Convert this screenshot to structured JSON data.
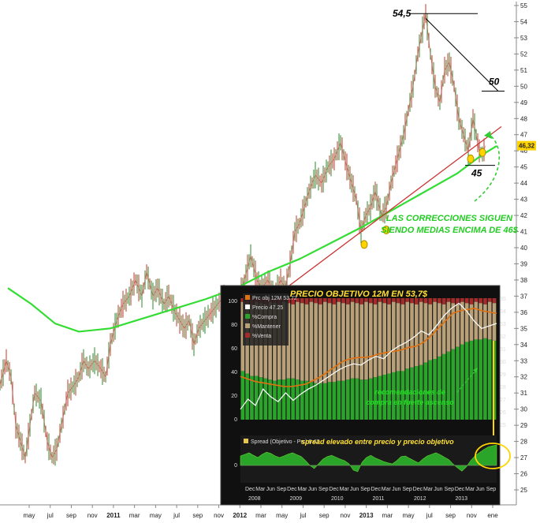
{
  "chart_data": {
    "type": "line",
    "main": {
      "y_ticks": [
        "55",
        "54",
        "53",
        "52",
        "51",
        "50",
        "49",
        "48",
        "47",
        "46",
        "45",
        "44",
        "43",
        "42",
        "41",
        "40",
        "39",
        "38",
        "37",
        "36",
        "35",
        "34",
        "33",
        "32",
        "31",
        "30",
        "29",
        "28",
        "27",
        "26",
        "25"
      ],
      "x_ticks": [
        "may",
        "jul",
        "sep",
        "nov",
        "2011",
        "mar",
        "may",
        "jul",
        "sep",
        "nov",
        "2012",
        "mar",
        "may",
        "jul",
        "sep",
        "nov",
        "2013",
        "mar",
        "may",
        "jul",
        "sep",
        "nov",
        "ene"
      ],
      "last_price_label": "46,32",
      "series": [
        {
          "name": "price",
          "color": "#c0392b"
        },
        {
          "name": "moving-average",
          "color": "#33dd33"
        },
        {
          "name": "trendline",
          "color": "#cc3333"
        }
      ],
      "price_points": [
        [
          0,
          31.5
        ],
        [
          8,
          33
        ],
        [
          14,
          32
        ],
        [
          20,
          29
        ],
        [
          26,
          28
        ],
        [
          32,
          27
        ],
        [
          38,
          29
        ],
        [
          44,
          31
        ],
        [
          52,
          30.5
        ],
        [
          60,
          28
        ],
        [
          66,
          27
        ],
        [
          72,
          27.5
        ],
        [
          78,
          29
        ],
        [
          86,
          31
        ],
        [
          94,
          31.5
        ],
        [
          100,
          32
        ],
        [
          106,
          33
        ],
        [
          112,
          32.5
        ],
        [
          120,
          33
        ],
        [
          128,
          32.5
        ],
        [
          134,
          32
        ],
        [
          140,
          34
        ],
        [
          148,
          35.5
        ],
        [
          156,
          36.5
        ],
        [
          164,
          37
        ],
        [
          172,
          38
        ],
        [
          180,
          37
        ],
        [
          186,
          38.5
        ],
        [
          194,
          37
        ],
        [
          200,
          37.5
        ],
        [
          208,
          36.5
        ],
        [
          214,
          37
        ],
        [
          222,
          36
        ],
        [
          228,
          35.5
        ],
        [
          234,
          35
        ],
        [
          240,
          35.5
        ],
        [
          246,
          34
        ],
        [
          252,
          35
        ],
        [
          260,
          35.5
        ],
        [
          268,
          36
        ],
        [
          276,
          36.5
        ],
        [
          284,
          37
        ],
        [
          292,
          36
        ],
        [
          298,
          35.5
        ],
        [
          304,
          37
        ],
        [
          310,
          38
        ],
        [
          318,
          39.5
        ],
        [
          326,
          38
        ],
        [
          332,
          37.5
        ],
        [
          340,
          38
        ],
        [
          348,
          37
        ],
        [
          356,
          38
        ],
        [
          362,
          37.5
        ],
        [
          368,
          39
        ],
        [
          374,
          41
        ],
        [
          380,
          41.5
        ],
        [
          386,
          42.5
        ],
        [
          392,
          43.5
        ],
        [
          400,
          44.5
        ],
        [
          408,
          44
        ],
        [
          416,
          45
        ],
        [
          424,
          45.5
        ],
        [
          432,
          46.5
        ],
        [
          440,
          45
        ],
        [
          446,
          44
        ],
        [
          452,
          43
        ],
        [
          458,
          41
        ],
        [
          464,
          42
        ],
        [
          470,
          42.5
        ],
        [
          476,
          43.5
        ],
        [
          484,
          42
        ],
        [
          490,
          42.5
        ],
        [
          496,
          44
        ],
        [
          504,
          45.5
        ],
        [
          512,
          47
        ],
        [
          518,
          48.5
        ],
        [
          524,
          50
        ],
        [
          530,
          52
        ],
        [
          536,
          53.5
        ],
        [
          540,
          54.5
        ],
        [
          546,
          52
        ],
        [
          552,
          50
        ],
        [
          558,
          49
        ],
        [
          564,
          51
        ],
        [
          570,
          51.5
        ],
        [
          576,
          50
        ],
        [
          582,
          48
        ],
        [
          588,
          47
        ],
        [
          594,
          46
        ],
        [
          600,
          48
        ],
        [
          604,
          47
        ],
        [
          608,
          46
        ],
        [
          612,
          45.8
        ],
        [
          616,
          46.32
        ]
      ],
      "ma_points": [
        [
          10,
          37.5
        ],
        [
          40,
          36.5
        ],
        [
          70,
          35.3
        ],
        [
          100,
          34.8
        ],
        [
          140,
          35
        ],
        [
          180,
          35.6
        ],
        [
          220,
          36.2
        ],
        [
          260,
          36.8
        ],
        [
          300,
          37.5
        ],
        [
          340,
          38.5
        ],
        [
          380,
          39.3
        ],
        [
          420,
          40.3
        ],
        [
          460,
          41.3
        ],
        [
          500,
          42.4
        ],
        [
          540,
          43.5
        ],
        [
          580,
          44.6
        ],
        [
          610,
          45.7
        ],
        [
          630,
          46.3
        ]
      ],
      "trendline_points": [
        [
          300,
          35.2
        ],
        [
          636,
          47.5
        ]
      ],
      "support_points": [
        [
          300,
          35.3
        ],
        [
          362,
          36.9
        ],
        [
          462,
          40.2
        ],
        [
          490,
          41.1
        ],
        [
          597,
          45.5
        ],
        [
          612,
          45.9
        ]
      ],
      "levels": [
        {
          "label": "54,5",
          "value": 54.5,
          "x_from": 520,
          "x_to": 606
        },
        {
          "label": "45",
          "value": 45.1,
          "x_from": 590,
          "x_to": 628
        }
      ],
      "resistance": {
        "label": "50",
        "from": [
          540,
          54.2
        ],
        "to": [
          632,
          49.7
        ]
      },
      "annotation": "LAS CORRECCIONES SIGUEN\nSIENDO MEDIAS ENCIMA DE 46$"
    },
    "inset": {
      "title": "PRECIO OBJETIVO 12M EN 53,7$",
      "legend": [
        {
          "label": "Prc obj 12M 53.72",
          "color": "#e07010"
        },
        {
          "label": "Precio 47.25",
          "color": "#ffffff"
        },
        {
          "label": "%Compra",
          "color": "#2aa52a"
        },
        {
          "label": "%Mantener",
          "color": "#b8a078"
        },
        {
          "label": "%Venta",
          "color": "#a52a2a"
        }
      ],
      "left_ticks": [
        "100",
        "80",
        "60",
        "40",
        "20",
        "0"
      ],
      "right_ticks": [
        "35",
        "34",
        "33",
        "32",
        "31",
        "30",
        "29",
        "28",
        "27",
        "26",
        "25"
      ],
      "buy_pct": [
        40,
        38,
        36,
        36,
        35,
        34,
        33,
        32,
        33,
        33,
        34,
        34,
        33,
        32,
        32,
        31,
        30,
        30,
        30,
        31,
        31,
        32,
        32,
        33,
        34,
        34,
        33,
        33,
        34,
        35,
        36,
        37,
        38,
        39,
        40,
        40,
        42,
        43,
        44,
        45,
        47,
        49,
        50,
        52,
        54,
        56,
        58,
        60,
        62,
        64,
        65,
        66,
        66,
        67,
        66,
        65
      ],
      "target_values": [
        28.8,
        28.6,
        28.4,
        28.3,
        28.2,
        28.1,
        28,
        28,
        28.1,
        28.2,
        28.5,
        28.8,
        29.2,
        29.6,
        30,
        30.2,
        30.3,
        30.3,
        30.4,
        30.6,
        30.7,
        30.8,
        30.9,
        31.1,
        31.2,
        31.5,
        32,
        32.6,
        33.2,
        33.8,
        34,
        34.1,
        34.2,
        34,
        33.9,
        33.8
      ],
      "price_values": [
        26.2,
        27,
        26.5,
        27.8,
        27.2,
        26.8,
        27.5,
        26.9,
        27.4,
        27.8,
        28.1,
        28.5,
        28.9,
        29.3,
        29.6,
        29.8,
        29.7,
        30.1,
        30.4,
        30.2,
        30.8,
        31.2,
        31.5,
        31.9,
        32.4,
        32.1,
        32.8,
        33.6,
        34.2,
        34.6,
        34,
        33.2,
        32.6,
        32.8,
        33
      ],
      "annotation": "recomendaciones de\ncompra en fuerte ascenso",
      "spread": {
        "legend": "Spread (Objetivo - Prc) 6.47",
        "annotation": "spread elevado entre precio y precio objetivo",
        "values": [
          3,
          3.5,
          4,
          3.2,
          2.5,
          3.5,
          4.2,
          3.8,
          3,
          2.5,
          3,
          3.6,
          4,
          3.4,
          2.8,
          1.5,
          0,
          -1,
          0.5,
          2,
          2.8,
          3.2,
          2.6,
          2,
          1.5,
          0.5,
          -1.5,
          -2,
          1,
          2.5,
          3.2,
          2.4,
          1.8,
          1.2,
          0.8,
          0.5,
          1.5,
          2.8,
          3,
          2.2,
          1.5,
          0.8,
          2,
          3,
          3.5,
          4,
          3.4,
          2.6,
          1.8,
          0.4,
          -0.8,
          -1.8,
          -0.5,
          1.5,
          3,
          4,
          5,
          5.8,
          6.2,
          6.47
        ]
      },
      "years": [
        "2008",
        "2009",
        "2010",
        "2011",
        "2012",
        "2013"
      ],
      "months": [
        "Dec",
        "Mar",
        "Jun",
        "Sep",
        "Dec",
        "Mar",
        "Jun",
        "Sep",
        "Dec",
        "Mar",
        "Jun",
        "Sep",
        "Dec",
        "Mar",
        "Jun",
        "Sep",
        "Dec",
        "Mar",
        "Jun",
        "Sep",
        "Dec",
        "Mar",
        "Jun",
        "Sep"
      ],
      "colors": {
        "background": "#101010",
        "buy": "#2aa52a",
        "hold": "#b8a078",
        "sell": "#a52a2a",
        "title": "#ffe033"
      }
    }
  }
}
